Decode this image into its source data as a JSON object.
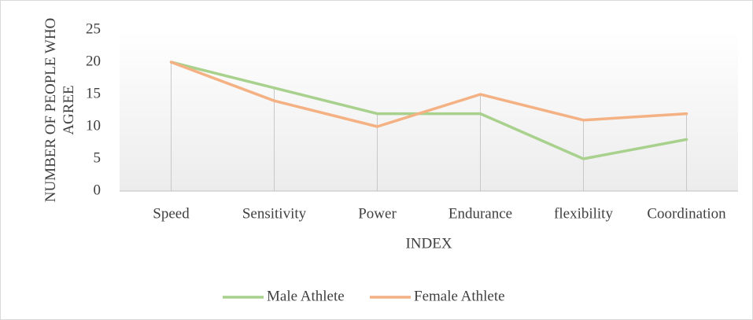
{
  "chart_data": {
    "type": "line",
    "y_label": "NUMBER OF PEOPLE WHO AGREE",
    "x_label": "INDEX",
    "categories": [
      "Speed",
      "Sensitivity",
      "Power",
      "Endurance",
      "flexibility",
      "Coordination"
    ],
    "series": [
      {
        "name": "Male Athlete",
        "color": "#a9d18e",
        "values": [
          20,
          16,
          12,
          12,
          5,
          8
        ]
      },
      {
        "name": "Female Athlete",
        "color": "#f4b183",
        "values": [
          20,
          14,
          10,
          15,
          11,
          12
        ]
      }
    ],
    "ylim": [
      0,
      25
    ],
    "yticks": [
      0,
      5,
      10,
      15,
      20,
      25
    ],
    "legend": "bottom"
  }
}
